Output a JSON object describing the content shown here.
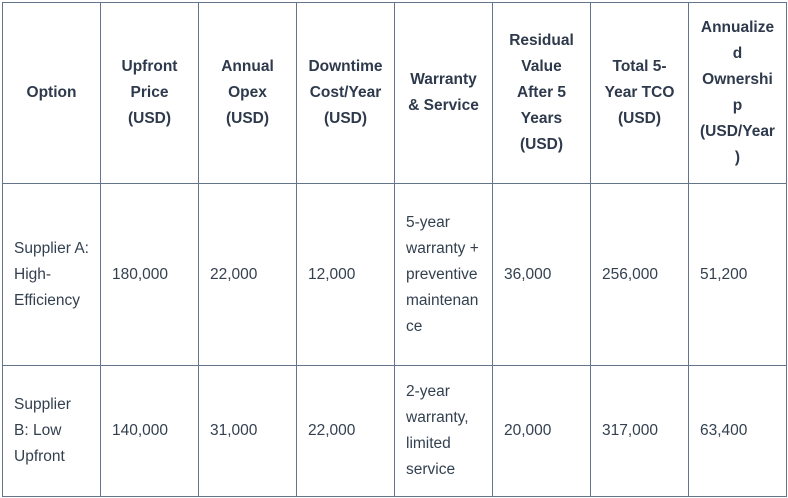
{
  "chart_data": {
    "type": "table",
    "title": "",
    "columns": [
      "Option",
      "Upfront Price (USD)",
      "Annual Opex (USD)",
      "Downtime Cost/Year (USD)",
      "Warranty & Service",
      "Residual Value After 5 Years (USD)",
      "Total 5-Year TCO (USD)",
      "Annualized Ownership (USD/Year)"
    ],
    "rows": [
      [
        "Supplier A: High-Efficiency",
        "180,000",
        "22,000",
        "12,000",
        "5-year warranty + preventive maintenance",
        "36,000",
        "256,000",
        "51,200"
      ],
      [
        "Supplier B: Low Upfront",
        "140,000",
        "31,000",
        "22,000",
        "2-year warranty, limited service",
        "20,000",
        "317,000",
        "63,400"
      ]
    ],
    "numeric_rows": [
      {
        "option": "Supplier A: High-Efficiency",
        "upfront_price_usd": 180000,
        "annual_opex_usd": 22000,
        "downtime_cost_per_year_usd": 12000,
        "residual_value_after_5_years_usd": 36000,
        "total_5_year_tco_usd": 256000,
        "annualized_ownership_usd_per_year": 51200
      },
      {
        "option": "Supplier B: Low Upfront",
        "upfront_price_usd": 140000,
        "annual_opex_usd": 31000,
        "downtime_cost_per_year_usd": 22000,
        "residual_value_after_5_years_usd": 20000,
        "total_5_year_tco_usd": 317000,
        "annualized_ownership_usd_per_year": 63400
      }
    ],
    "layout_hints": {
      "header_bold": true,
      "header_align": "center",
      "body_align": "left",
      "grid": true
    }
  },
  "colors": {
    "text": "#2e3a4c",
    "border": "#64748b",
    "outer_border": "#52627a",
    "background": "#ffffff"
  }
}
